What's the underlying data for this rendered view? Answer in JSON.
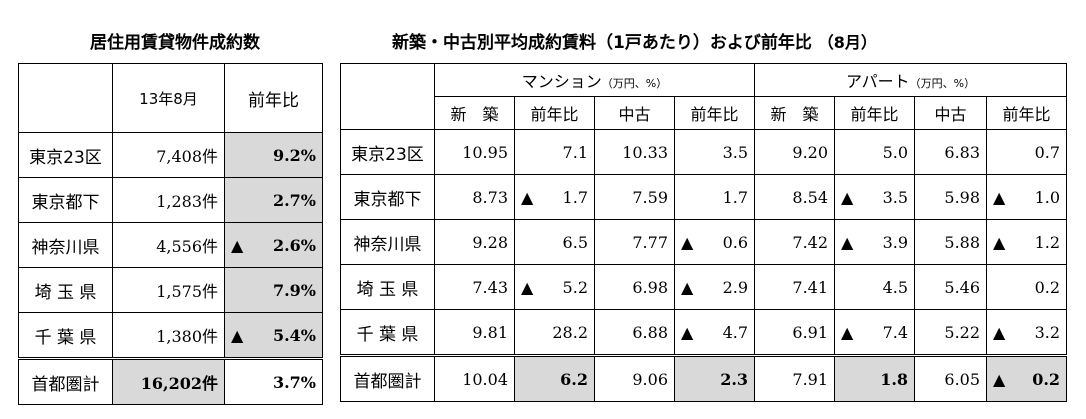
{
  "left": {
    "title": "居住用賃貸物件成約数",
    "headers": [
      "13年8月",
      "前年比"
    ],
    "rows": [
      {
        "region": "東京23区",
        "count": "7,408件",
        "yoy_tri": "",
        "yoy": "9.2%"
      },
      {
        "region": "東京都下",
        "count": "1,283件",
        "yoy_tri": "",
        "yoy": "2.7%"
      },
      {
        "region": "神奈川県",
        "count": "4,556件",
        "yoy_tri": "▲",
        "yoy": "2.6%"
      },
      {
        "region": "埼 玉 県",
        "count": "1,575件",
        "yoy_tri": "",
        "yoy": "7.9%"
      },
      {
        "region": "千 葉 県",
        "count": "1,380件",
        "yoy_tri": "▲",
        "yoy": "5.4%"
      }
    ],
    "total": {
      "region": "首都圏計",
      "count": "16,202件",
      "yoy": "3.7%"
    }
  },
  "right": {
    "title": "新築・中古別平均成約賃料（1戸あたり）および前年比",
    "title_sub": "（8月）",
    "group1": {
      "name": "マンション",
      "unit": "（万円、%）"
    },
    "group2": {
      "name": "アパート",
      "unit": "（万円、%）"
    },
    "subheaders": [
      "新　築",
      "前年比",
      "中古",
      "前年比",
      "新　築",
      "前年比",
      "中古",
      "前年比"
    ],
    "rows": [
      {
        "region": "東京23区",
        "cells": [
          [
            "",
            "10.95"
          ],
          [
            "",
            "7.1"
          ],
          [
            "",
            "10.33"
          ],
          [
            "",
            "3.5"
          ],
          [
            "",
            "9.20"
          ],
          [
            "",
            "5.0"
          ],
          [
            "",
            "6.83"
          ],
          [
            "",
            "0.7"
          ]
        ]
      },
      {
        "region": "東京都下",
        "cells": [
          [
            "",
            "8.73"
          ],
          [
            "▲",
            "1.7"
          ],
          [
            "",
            "7.59"
          ],
          [
            "",
            "1.7"
          ],
          [
            "",
            "8.54"
          ],
          [
            "▲",
            "3.5"
          ],
          [
            "",
            "5.98"
          ],
          [
            "▲",
            "1.0"
          ]
        ]
      },
      {
        "region": "神奈川県",
        "cells": [
          [
            "",
            "9.28"
          ],
          [
            "",
            "6.5"
          ],
          [
            "",
            "7.77"
          ],
          [
            "▲",
            "0.6"
          ],
          [
            "",
            "7.42"
          ],
          [
            "▲",
            "3.9"
          ],
          [
            "",
            "5.88"
          ],
          [
            "▲",
            "1.2"
          ]
        ]
      },
      {
        "region": "埼 玉 県",
        "cells": [
          [
            "",
            "7.43"
          ],
          [
            "▲",
            "5.2"
          ],
          [
            "",
            "6.98"
          ],
          [
            "▲",
            "2.9"
          ],
          [
            "",
            "7.41"
          ],
          [
            "",
            "4.5"
          ],
          [
            "",
            "5.46"
          ],
          [
            "",
            "0.2"
          ]
        ]
      },
      {
        "region": "千 葉 県",
        "cells": [
          [
            "",
            "9.81"
          ],
          [
            "",
            "28.2"
          ],
          [
            "",
            "6.88"
          ],
          [
            "▲",
            "4.7"
          ],
          [
            "",
            "6.91"
          ],
          [
            "▲",
            "7.4"
          ],
          [
            "",
            "5.22"
          ],
          [
            "▲",
            "3.2"
          ]
        ]
      },
      {
        "region": "首都圏計",
        "cells": [
          [
            "",
            "10.04"
          ],
          [
            "",
            "6.2"
          ],
          [
            "",
            "9.06"
          ],
          [
            "",
            "2.3"
          ],
          [
            "",
            "7.91"
          ],
          [
            "",
            "1.8"
          ],
          [
            "",
            "6.05"
          ],
          [
            "▲",
            "0.2"
          ]
        ]
      }
    ]
  }
}
